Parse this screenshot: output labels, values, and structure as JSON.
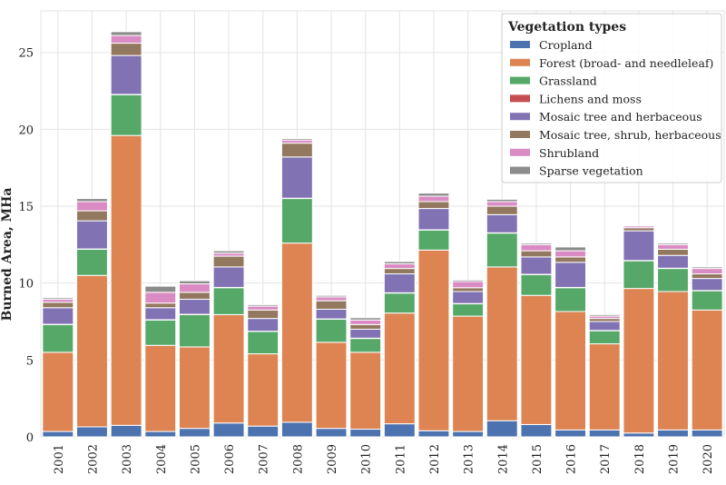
{
  "chart_data": {
    "type": "bar",
    "stacked": true,
    "title": "",
    "xlabel": "",
    "ylabel": "Burned Area, MHa",
    "ylim": [
      0,
      27.7
    ],
    "yticks": [
      0,
      5,
      10,
      15,
      20,
      25
    ],
    "grid": true,
    "legend_position": "top-right",
    "legend_title": "Vegetation types",
    "categories": [
      "2001",
      "2002",
      "2003",
      "2004",
      "2005",
      "2006",
      "2007",
      "2008",
      "2009",
      "2010",
      "2011",
      "2012",
      "2013",
      "2014",
      "2015",
      "2016",
      "2017",
      "2018",
      "2019",
      "2020"
    ],
    "series": [
      {
        "name": "Cropland",
        "color": "#4c72b0",
        "values": [
          0.35,
          0.65,
          0.75,
          0.35,
          0.55,
          0.9,
          0.7,
          0.95,
          0.55,
          0.5,
          0.85,
          0.4,
          0.35,
          1.05,
          0.8,
          0.45,
          0.45,
          0.25,
          0.45,
          0.45
        ]
      },
      {
        "name": "Forest (broad- and needleleaf)",
        "color": "#dd8452",
        "values": [
          5.15,
          9.85,
          18.85,
          5.6,
          5.3,
          7.05,
          4.7,
          11.65,
          5.6,
          5.0,
          7.2,
          11.75,
          7.5,
          10.0,
          8.4,
          7.7,
          5.6,
          9.4,
          9.0,
          7.8
        ]
      },
      {
        "name": "Grassland",
        "color": "#55a868",
        "values": [
          1.8,
          1.7,
          2.65,
          1.65,
          2.1,
          1.75,
          1.45,
          2.9,
          1.5,
          0.9,
          1.3,
          1.3,
          0.8,
          2.2,
          1.35,
          1.55,
          0.85,
          1.8,
          1.5,
          1.25
        ]
      },
      {
        "name": "Lichens and moss",
        "color": "#c44e52",
        "values": [
          0.02,
          0.02,
          0.02,
          0.02,
          0.02,
          0.02,
          0.02,
          0.02,
          0.02,
          0.02,
          0.02,
          0.02,
          0.02,
          0.02,
          0.02,
          0.02,
          0.02,
          0.02,
          0.02,
          0.02
        ]
      },
      {
        "name": "Mosaic tree and herbaceous",
        "color": "#8172b3",
        "values": [
          1.08,
          1.83,
          2.53,
          0.78,
          0.98,
          1.33,
          0.83,
          2.68,
          0.63,
          0.58,
          1.23,
          1.38,
          0.78,
          1.18,
          1.13,
          1.63,
          0.58,
          1.93,
          0.83,
          0.78
        ]
      },
      {
        "name": "Mosaic tree, shrub, herbaceous",
        "color": "#937860",
        "values": [
          0.35,
          0.65,
          0.8,
          0.3,
          0.45,
          0.7,
          0.55,
          0.9,
          0.55,
          0.3,
          0.35,
          0.45,
          0.25,
          0.55,
          0.4,
          0.35,
          0.2,
          0.2,
          0.4,
          0.3
        ]
      },
      {
        "name": "Shrubland",
        "color": "#da8bc3",
        "values": [
          0.2,
          0.6,
          0.5,
          0.7,
          0.55,
          0.2,
          0.25,
          0.2,
          0.25,
          0.3,
          0.3,
          0.35,
          0.4,
          0.3,
          0.4,
          0.4,
          0.15,
          0.12,
          0.3,
          0.35
        ]
      },
      {
        "name": "Sparse vegetation",
        "color": "#8c8c8c",
        "values": [
          0.1,
          0.2,
          0.25,
          0.4,
          0.2,
          0.15,
          0.1,
          0.1,
          0.1,
          0.15,
          0.15,
          0.2,
          0.1,
          0.15,
          0.1,
          0.25,
          0.1,
          0.03,
          0.1,
          0.1
        ]
      }
    ]
  }
}
